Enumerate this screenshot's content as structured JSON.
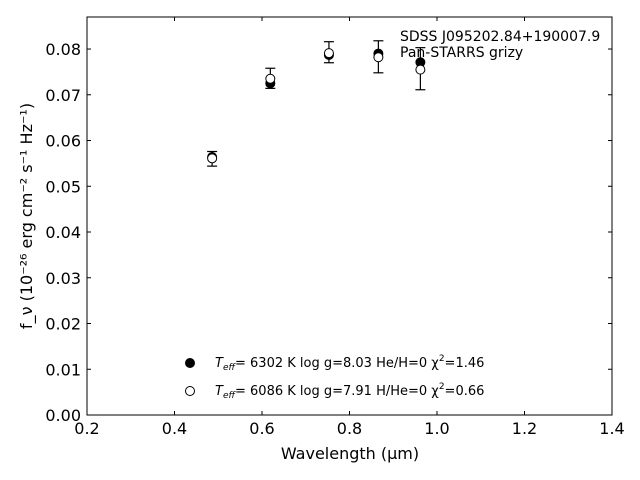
{
  "chart_data": {
    "type": "scatter",
    "title": "",
    "xlabel": "Wavelength (μm)",
    "ylabel": "f_ν (10⁻²⁶ erg cm⁻² s⁻¹ Hz⁻¹)",
    "xlim": [
      0.2,
      1.4
    ],
    "ylim": [
      0.0,
      0.087
    ],
    "x_ticks": [
      0.2,
      0.4,
      0.6,
      0.8,
      1.0,
      1.2,
      1.4
    ],
    "x_tick_labels": [
      "0.2",
      "0.4",
      "0.6",
      "0.8",
      "1.0",
      "1.2",
      "1.4"
    ],
    "y_ticks": [
      0.0,
      0.01,
      0.02,
      0.03,
      0.04,
      0.05,
      0.06,
      0.07,
      0.08
    ],
    "y_tick_labels": [
      "0.00",
      "0.01",
      "0.02",
      "0.03",
      "0.04",
      "0.05",
      "0.06",
      "0.07",
      "0.08"
    ],
    "grid": false,
    "annotation": {
      "line1": "SDSS J095202.84+190007.9",
      "line2": "Pan-STARRS grizy"
    },
    "observed": {
      "x": [
        0.486,
        0.619,
        0.753,
        0.866,
        0.962
      ],
      "y": [
        0.056,
        0.0736,
        0.0793,
        0.0783,
        0.0757
      ],
      "err": [
        0.0016,
        0.0022,
        0.0023,
        0.0035,
        0.0046
      ]
    },
    "series": [
      {
        "marker": "filled",
        "color": "#000000",
        "x": [
          0.486,
          0.619,
          0.753,
          0.866,
          0.962
        ],
        "y": [
          0.0564,
          0.0725,
          0.0787,
          0.079,
          0.0771
        ]
      },
      {
        "marker": "open",
        "color": "#000000",
        "x": [
          0.486,
          0.619,
          0.753,
          0.866,
          0.962
        ],
        "y": [
          0.0561,
          0.0735,
          0.0791,
          0.0782,
          0.0755
        ]
      }
    ],
    "legend": {
      "placement": "bottom-center",
      "entries": [
        {
          "marker": "filled",
          "teff_label": "T",
          "teff_sub": "eff",
          "text_a": "=  6302 K  log g=8.03  He/H=0  χ",
          "sup": "2",
          "text_b": "=1.46"
        },
        {
          "marker": "open",
          "teff_label": "T",
          "teff_sub": "eff",
          "text_a": "=  6086 K  log g=7.91  H/He=0  χ",
          "sup": "2",
          "text_b": "=0.66"
        }
      ]
    }
  }
}
